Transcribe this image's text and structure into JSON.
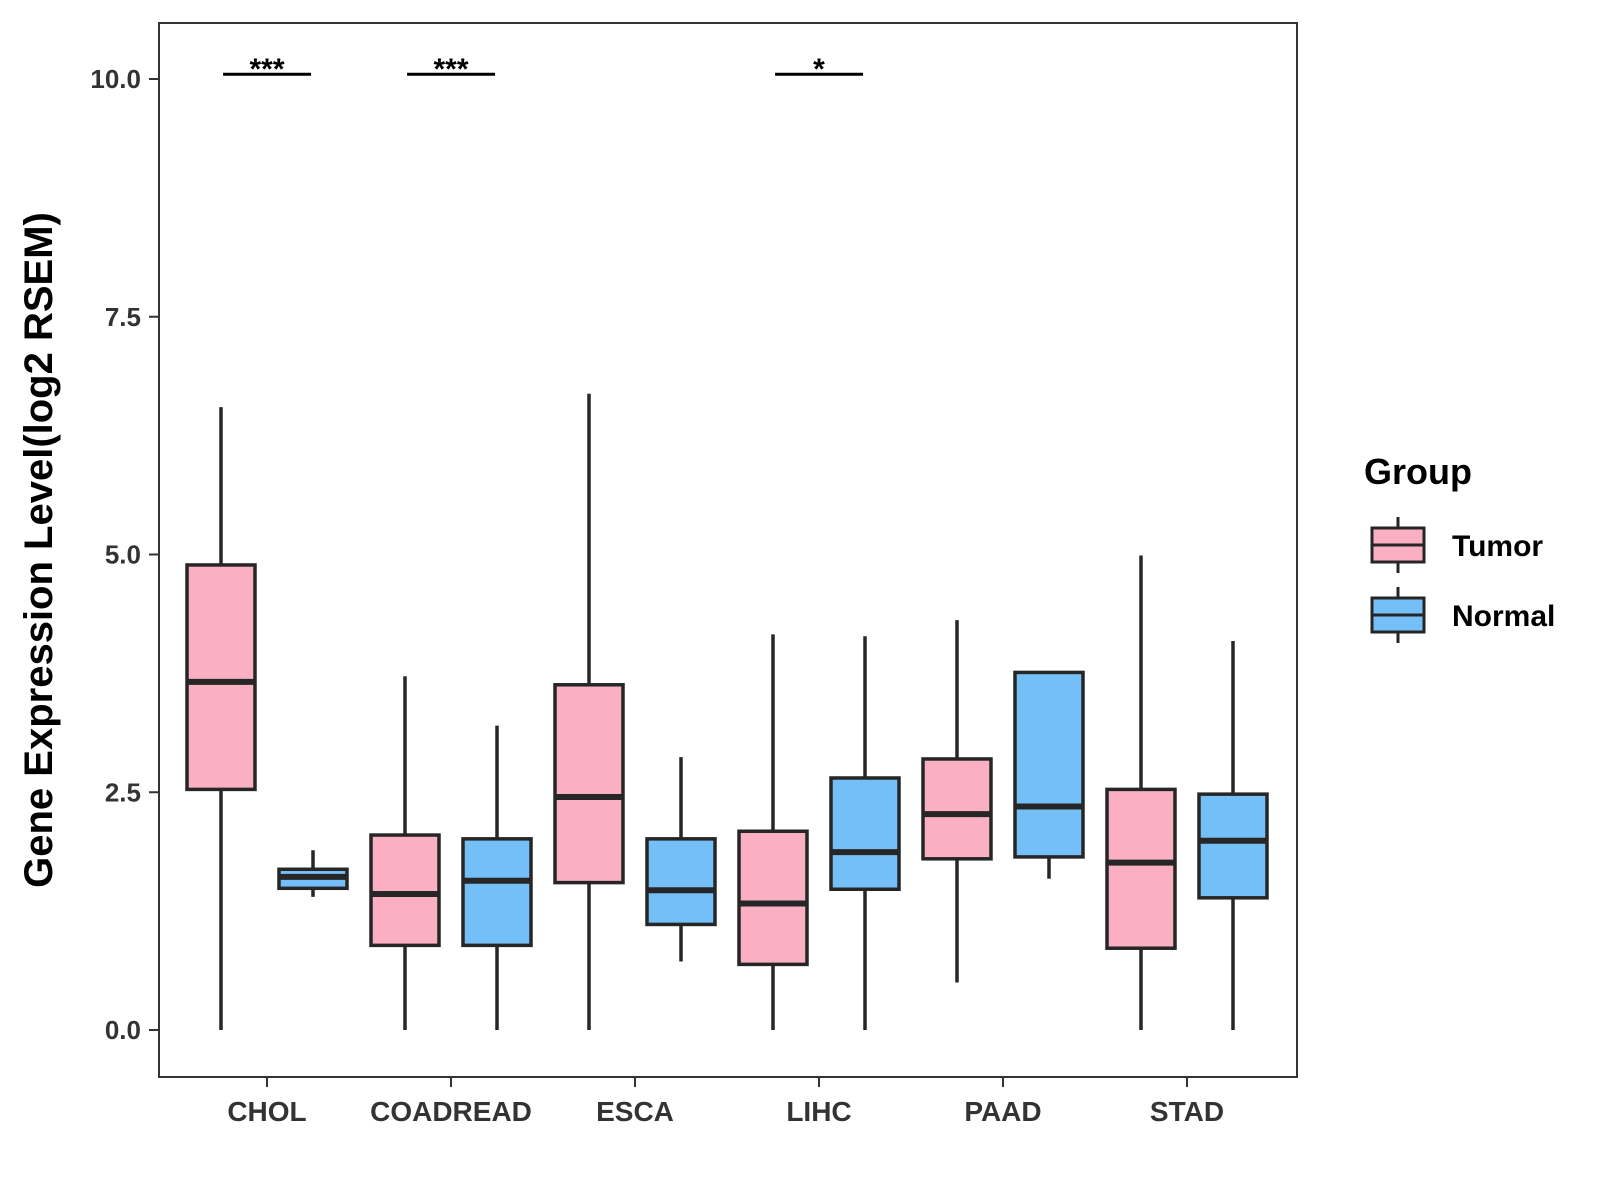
{
  "chart_data": {
    "type": "boxplot",
    "title": "",
    "xlabel": "",
    "ylabel": "Gene Expression Level(log2 RSEM)",
    "ylim": [
      -0.5,
      10.6
    ],
    "yticks": [
      0.0,
      2.5,
      5.0,
      7.5,
      10.0
    ],
    "ytick_labels": [
      "0.0",
      "2.5",
      "5.0",
      "7.5",
      "10.0"
    ],
    "categories": [
      "CHOL",
      "COADREAD",
      "ESCA",
      "LIHC",
      "PAAD",
      "STAD"
    ],
    "legend": {
      "title": "Group",
      "placement": "right",
      "items": [
        {
          "name": "Tumor",
          "color": "#FAB0C2"
        },
        {
          "name": "Normal",
          "color": "#74BFF7"
        }
      ]
    },
    "series": [
      {
        "name": "Tumor",
        "color": "#FAB0C2",
        "boxes": [
          {
            "min": 0.0,
            "q1": 2.53,
            "median": 3.66,
            "q3": 4.89,
            "max": 6.55
          },
          {
            "min": 0.0,
            "q1": 0.89,
            "median": 1.43,
            "q3": 2.05,
            "max": 3.72
          },
          {
            "min": 0.0,
            "q1": 1.55,
            "median": 2.45,
            "q3": 3.63,
            "max": 6.69
          },
          {
            "min": 0.0,
            "q1": 0.69,
            "median": 1.33,
            "q3": 2.09,
            "max": 4.16
          },
          {
            "min": 0.5,
            "q1": 1.8,
            "median": 2.27,
            "q3": 2.85,
            "max": 4.31
          },
          {
            "min": 0.0,
            "q1": 0.86,
            "median": 1.76,
            "q3": 2.53,
            "max": 4.99
          }
        ]
      },
      {
        "name": "Normal",
        "color": "#74BFF7",
        "boxes": [
          {
            "min": 1.4,
            "q1": 1.49,
            "median": 1.61,
            "q3": 1.69,
            "max": 1.89
          },
          {
            "min": 0.0,
            "q1": 0.89,
            "median": 1.57,
            "q3": 2.01,
            "max": 3.2
          },
          {
            "min": 0.72,
            "q1": 1.11,
            "median": 1.47,
            "q3": 2.01,
            "max": 2.87
          },
          {
            "min": 0.0,
            "q1": 1.48,
            "median": 1.87,
            "q3": 2.65,
            "max": 4.14
          },
          {
            "min": 1.59,
            "q1": 1.82,
            "median": 2.35,
            "q3": 3.76,
            "max": 3.76
          },
          {
            "min": 0.0,
            "q1": 1.39,
            "median": 1.99,
            "q3": 2.48,
            "max": 4.09
          }
        ]
      }
    ],
    "annotations": [
      {
        "category": "CHOL",
        "text": "***",
        "y": 10.05
      },
      {
        "category": "COADREAD",
        "text": "***",
        "y": 10.05
      },
      {
        "category": "LIHC",
        "text": "*",
        "y": 10.05
      }
    ]
  }
}
